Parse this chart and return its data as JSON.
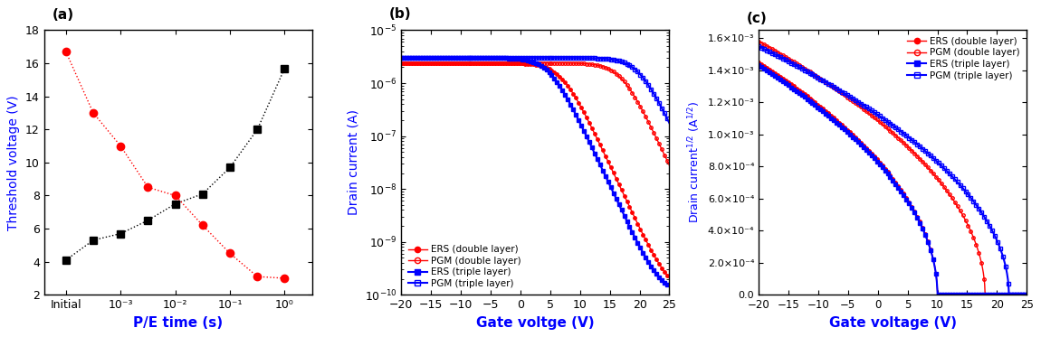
{
  "panel_a": {
    "xlabel": "P/E time (s)",
    "ylabel": "Threshold voltage (V)",
    "ylim": [
      2,
      18
    ],
    "yticks": [
      2,
      4,
      6,
      8,
      10,
      12,
      14,
      16,
      18
    ],
    "black_x": [
      0,
      1,
      2,
      3,
      4,
      5,
      6,
      7,
      8
    ],
    "black_y": [
      4.1,
      5.3,
      5.7,
      6.5,
      7.5,
      8.1,
      9.7,
      12.0,
      15.7
    ],
    "red_x": [
      0,
      1,
      2,
      3,
      4,
      5,
      6,
      7,
      8
    ],
    "red_y": [
      16.7,
      13.0,
      11.0,
      8.5,
      8.0,
      6.2,
      4.5,
      3.1,
      3.0
    ],
    "xtick_pos": [
      0,
      2,
      4,
      6,
      8
    ],
    "xtick_labels": [
      "Initial",
      "10⁻³",
      "10⁻²",
      "10⁻¹",
      "10⁰"
    ]
  },
  "panel_b": {
    "xlabel": "Gate voltge (V)",
    "ylabel": "Drain current (A)",
    "xlim": [
      -20,
      25
    ],
    "xticks": [
      -20,
      -15,
      -10,
      -5,
      0,
      5,
      10,
      15,
      20,
      25
    ]
  },
  "panel_c": {
    "xlabel": "Gate voltage (V)",
    "ylabel": "Drain current",
    "ylabel2": "1/2 (A 1/2)",
    "xlim": [
      -20,
      25
    ],
    "ylim": [
      0,
      0.00165
    ],
    "xticks": [
      -20,
      -15,
      -10,
      -5,
      0,
      5,
      10,
      15,
      20,
      25
    ],
    "yticks": [
      0,
      0.0002,
      0.0004,
      0.0006,
      0.0008,
      0.001,
      0.0012,
      0.0014,
      0.0016
    ],
    "ytick_labels": [
      "0.0",
      "2.0×10⁻⁴",
      "4.0×10⁻⁴",
      "6.0×10⁻⁴",
      "8.0×10⁻⁴",
      "1.0×10⁻³",
      "1.2×10⁻³",
      "1.4×10⁻³",
      "1.6×10⁻³"
    ]
  },
  "colors": {
    "red": "#ff0000",
    "blue": "#0000ff",
    "black": "#000000"
  }
}
